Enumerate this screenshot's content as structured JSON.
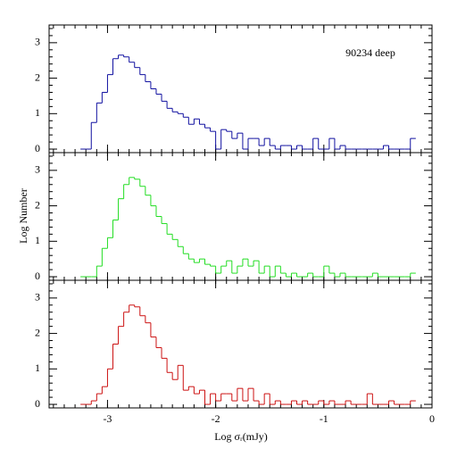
{
  "chart_data": {
    "type": "histogram",
    "annotation": "90234 deep",
    "ylabel": "Log Number",
    "xlabel": "Log σᵣ(mJy)",
    "xlim": [
      -3.54,
      0
    ],
    "xticks": [
      -3,
      -2,
      -1,
      0
    ],
    "xminorticks": [
      -3.5,
      -3.4,
      -3.3,
      -3.2,
      -3.1,
      -3.0,
      -2.9,
      -2.8,
      -2.7,
      -2.6,
      -2.5,
      -2.4,
      -2.3,
      -2.2,
      -2.1,
      -2.0,
      -1.9,
      -1.8,
      -1.7,
      -1.6,
      -1.5,
      -1.4,
      -1.3,
      -1.2,
      -1.1,
      -1.0,
      -0.9,
      -0.8,
      -0.7,
      -0.6,
      -0.5,
      -0.4,
      -0.3,
      -0.2,
      -0.1
    ],
    "ylim": [
      -0.1,
      3.5
    ],
    "yticks": [
      0,
      1,
      2,
      3
    ],
    "yminorticks": [
      0.2,
      0.4,
      0.6,
      0.8,
      1.2,
      1.4,
      1.6,
      1.8,
      2.2,
      2.4,
      2.6,
      2.8,
      3.2,
      3.4
    ],
    "bins": [
      -3.25,
      -3.2,
      -3.15,
      -3.1,
      -3.05,
      -3.0,
      -2.95,
      -2.9,
      -2.85,
      -2.8,
      -2.75,
      -2.7,
      -2.65,
      -2.6,
      -2.55,
      -2.5,
      -2.45,
      -2.4,
      -2.35,
      -2.3,
      -2.25,
      -2.2,
      -2.15,
      -2.1,
      -2.05,
      -2.0,
      -1.95,
      -1.9,
      -1.85,
      -1.8,
      -1.75,
      -1.7,
      -1.65,
      -1.6,
      -1.55,
      -1.5,
      -1.45,
      -1.4,
      -1.35,
      -1.3,
      -1.25,
      -1.2,
      -1.15,
      -1.1,
      -1.05,
      -1.0,
      -0.95,
      -0.9,
      -0.85,
      -0.8,
      -0.75,
      -0.7,
      -0.65,
      -0.6,
      -0.55,
      -0.5,
      -0.45,
      -0.4,
      -0.35,
      -0.3,
      -0.25,
      -0.2,
      -0.15
    ],
    "series": [
      {
        "color": "#1010a0",
        "values": [
          0,
          0,
          0.75,
          1.3,
          1.6,
          2.1,
          2.55,
          2.65,
          2.6,
          2.45,
          2.3,
          2.1,
          1.9,
          1.7,
          1.55,
          1.35,
          1.15,
          1.05,
          1.0,
          0.9,
          0.7,
          0.85,
          0.7,
          0.6,
          0.5,
          0,
          0.55,
          0.5,
          0.3,
          0.45,
          0,
          0.3,
          0.3,
          0.1,
          0.3,
          0.1,
          0,
          0.1,
          0.1,
          0,
          0.1,
          0,
          0,
          0.3,
          0,
          0,
          0.3,
          0,
          0.1,
          0,
          0,
          0,
          0,
          0,
          0,
          0,
          0.1,
          0,
          0,
          0,
          0,
          0.3
        ]
      },
      {
        "color": "#22dd22",
        "values": [
          0,
          0,
          0,
          0.3,
          0.8,
          1.1,
          1.6,
          2.2,
          2.6,
          2.8,
          2.75,
          2.55,
          2.3,
          2.0,
          1.7,
          1.5,
          1.2,
          1.05,
          0.85,
          0.65,
          0.5,
          0.4,
          0.5,
          0.35,
          0.3,
          0.1,
          0.3,
          0.45,
          0.1,
          0.3,
          0.5,
          0.3,
          0.45,
          0.1,
          0.3,
          0,
          0.3,
          0.1,
          0,
          0.1,
          0,
          0,
          0.1,
          0,
          0,
          0.3,
          0.1,
          0,
          0.1,
          0,
          0,
          0,
          0,
          0,
          0.1,
          0,
          0,
          0,
          0,
          0,
          0,
          0.1
        ]
      },
      {
        "color": "#cc1111",
        "values": [
          0,
          0,
          0.1,
          0.3,
          0.5,
          1.0,
          1.7,
          2.2,
          2.6,
          2.8,
          2.75,
          2.5,
          2.3,
          1.9,
          1.6,
          1.3,
          0.9,
          0.7,
          1.1,
          0.4,
          0.5,
          0.3,
          0.4,
          0,
          0.3,
          0.1,
          0.3,
          0.3,
          0.1,
          0.45,
          0.1,
          0.45,
          0.1,
          0,
          0.3,
          0,
          0.1,
          0,
          0,
          0.1,
          0,
          0.1,
          0,
          0,
          0.1,
          0,
          0.1,
          0,
          0,
          0.1,
          0,
          0,
          0,
          0.3,
          0,
          0,
          0,
          0.1,
          0,
          0,
          0,
          0.1
        ]
      }
    ]
  }
}
